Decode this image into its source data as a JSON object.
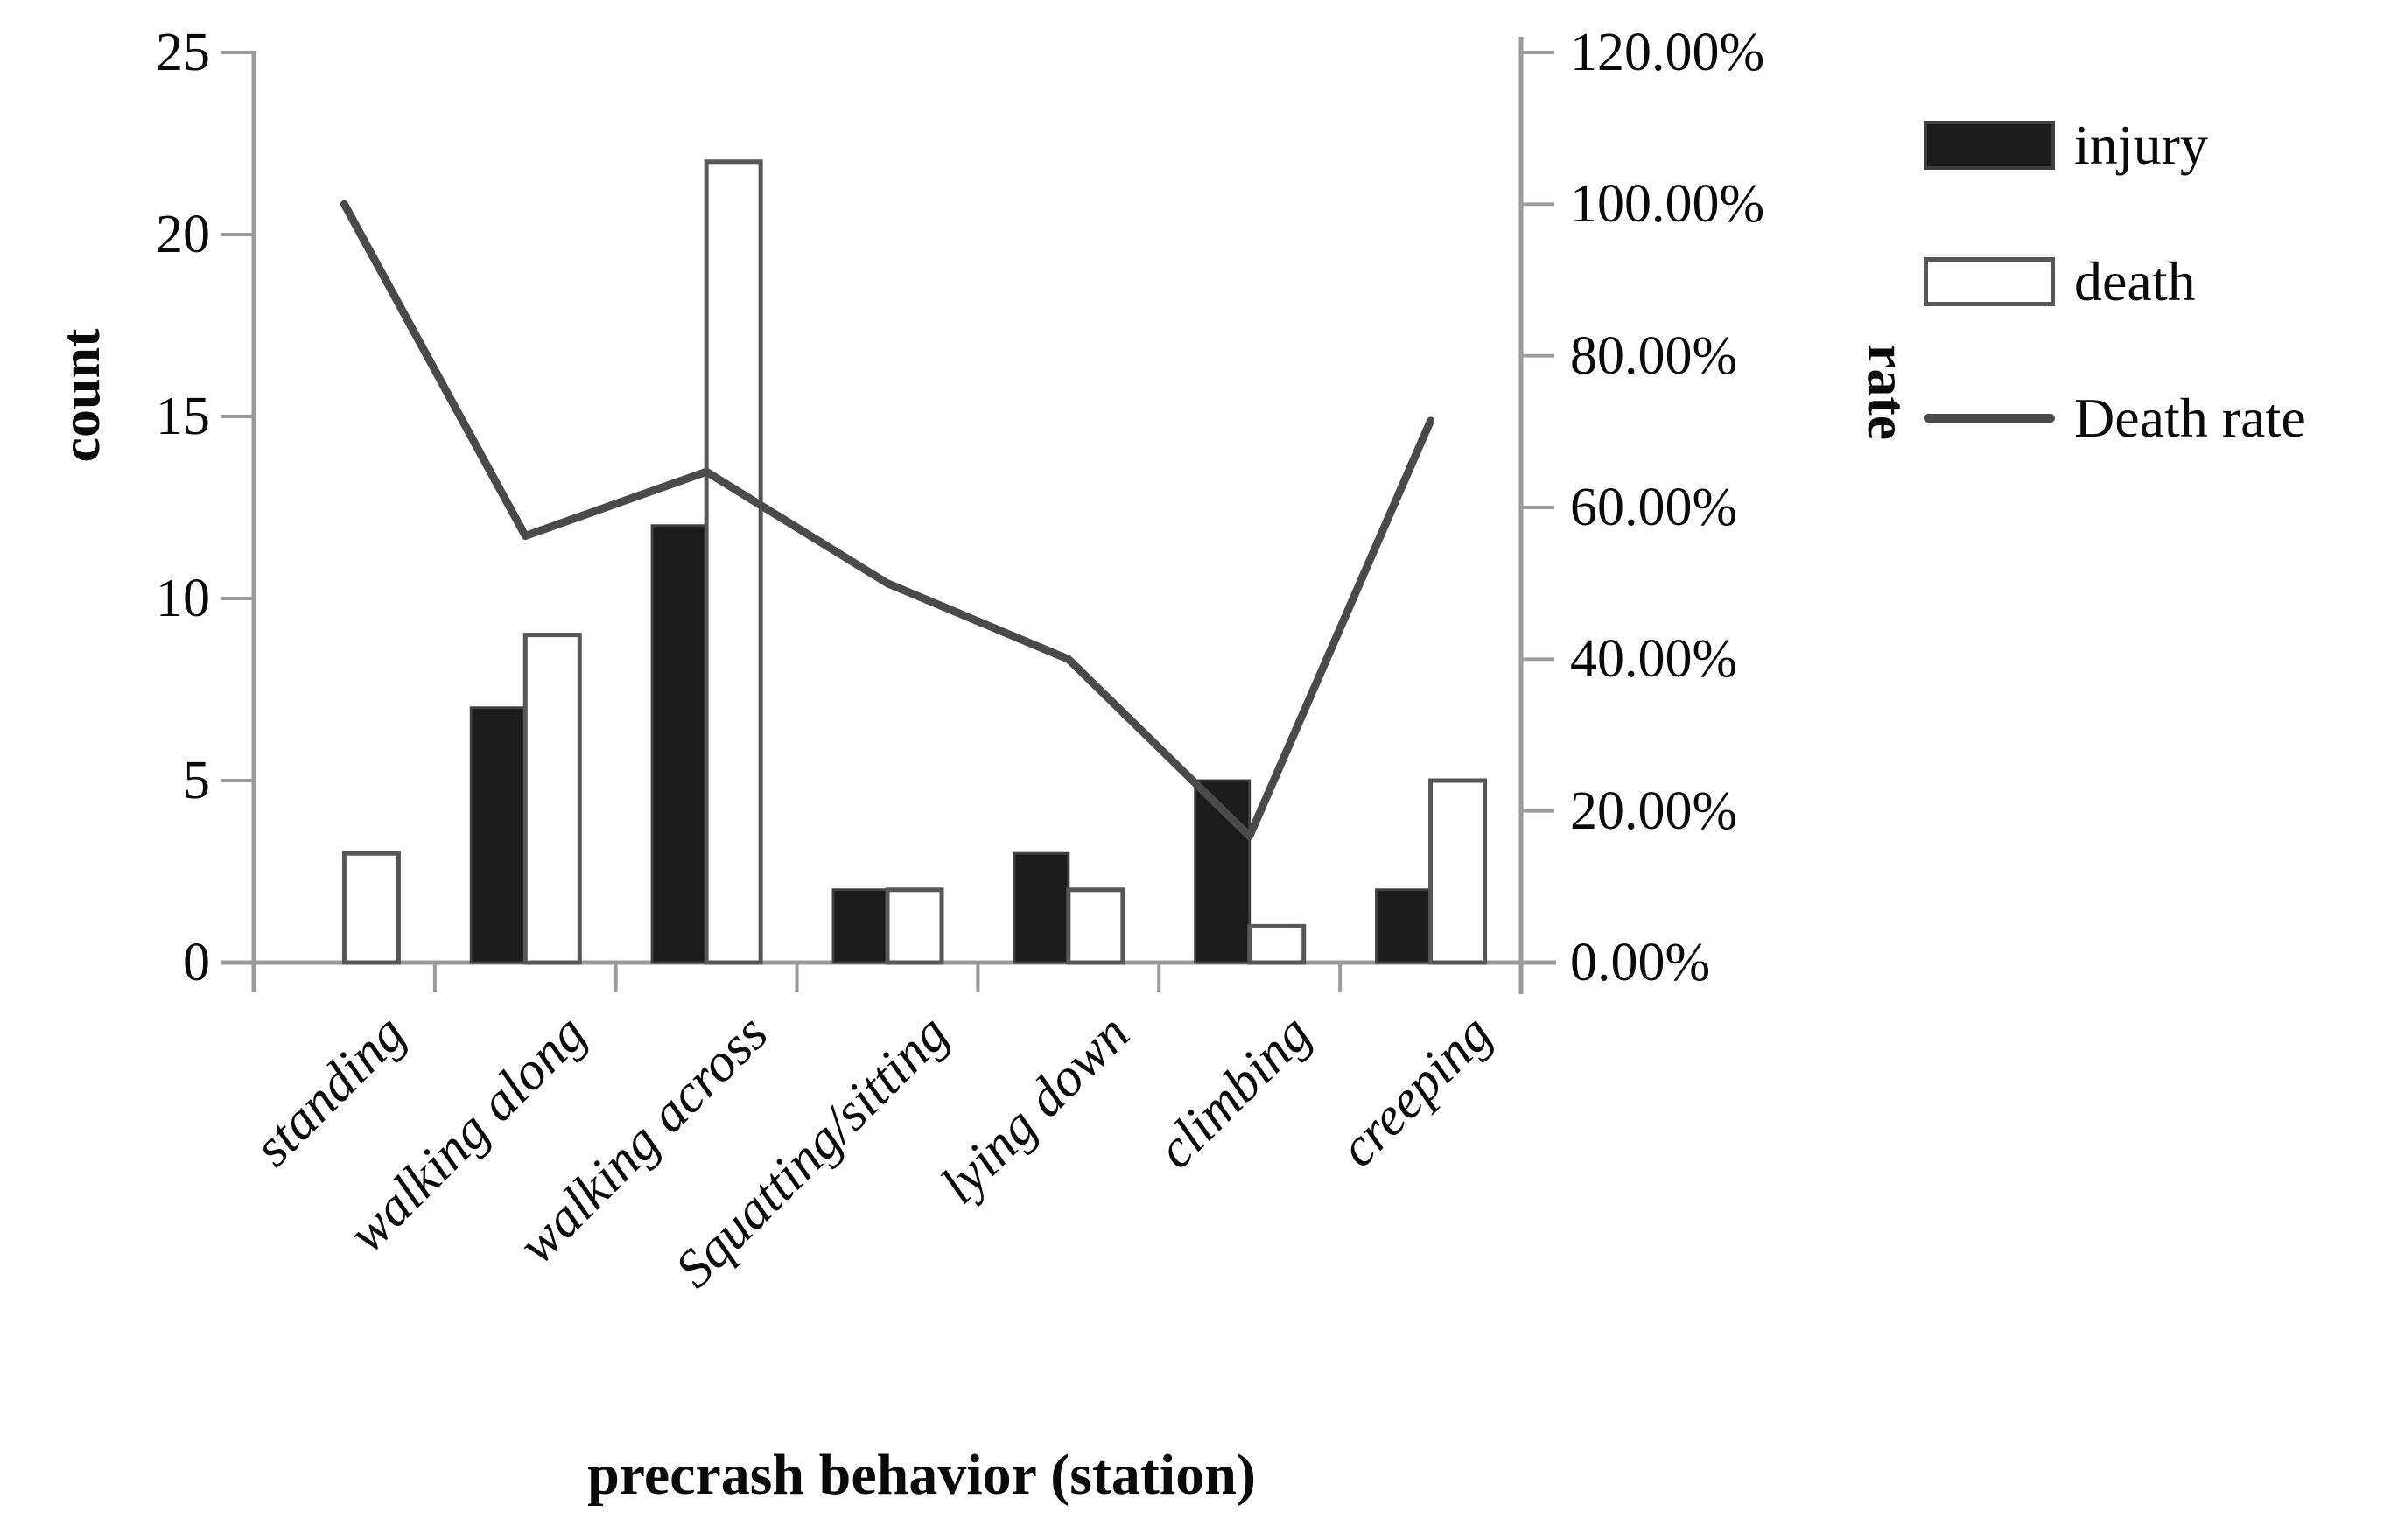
{
  "figure": {
    "left_axis_title": "count",
    "right_axis_title": "rate",
    "x_axis_title": "precrash behavior (station)"
  },
  "legend": {
    "position": "top-right",
    "items": [
      {
        "label": "injury",
        "swatch": "filled-black-bar"
      },
      {
        "label": "death",
        "swatch": "outlined-white-bar"
      },
      {
        "label": "Death rate",
        "swatch": "gray-line"
      }
    ]
  },
  "chart_data": {
    "type": "bar+line",
    "categories": [
      "standing",
      "walking along",
      "walking across",
      "Squatting/sitting",
      "lying down",
      "climbing",
      "creeping"
    ],
    "series": [
      {
        "name": "injury",
        "chart": "bar",
        "axis": "left",
        "values": [
          0,
          7,
          12,
          2,
          3,
          5,
          2
        ]
      },
      {
        "name": "death",
        "chart": "bar",
        "axis": "left",
        "values": [
          3,
          9,
          22,
          2,
          2,
          1,
          5
        ]
      },
      {
        "name": "Death rate",
        "chart": "line",
        "axis": "right",
        "values_percent": [
          100,
          56.25,
          64.71,
          50,
          40,
          16.67,
          71.43
        ]
      }
    ],
    "left_axis": {
      "title": "count",
      "min": 0,
      "max": 25,
      "tick_step": 5,
      "tick_labels": [
        "0",
        "5",
        "10",
        "15",
        "20",
        "25"
      ]
    },
    "right_axis": {
      "title": "rate",
      "min_percent": 0,
      "max_percent": 120,
      "tick_step_percent": 20,
      "tick_labels": [
        "0.00%",
        "20.00%",
        "40.00%",
        "60.00%",
        "80.00%",
        "100.00%",
        "120.00%"
      ]
    },
    "xlabel": "precrash behavior (station)",
    "grid": false,
    "legend_position": "top-right"
  },
  "colors": {
    "background": "#ffffff",
    "bar_injury_fill": "#1b1b1b",
    "bar_injury_stroke": "#3f3f3f",
    "bar_death_fill": "#ffffff",
    "bar_death_stroke": "#575757",
    "death_rate_line": "#4a4a4a",
    "axis": "#9b9b9b",
    "text": "#000000"
  }
}
